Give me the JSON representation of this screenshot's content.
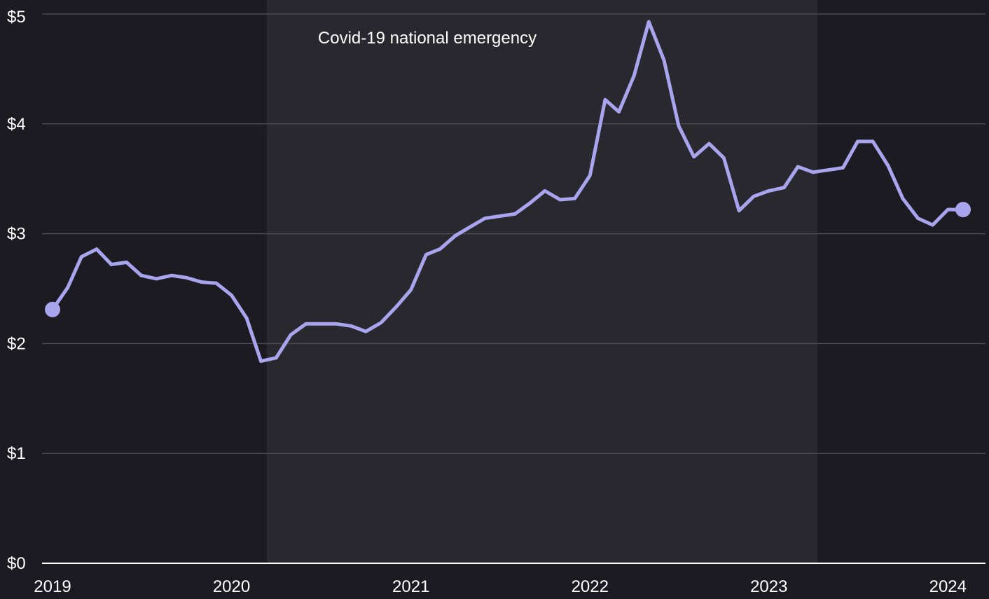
{
  "colors": {
    "background": "#1c1b21",
    "shade": "#29282e",
    "line": "#a9a4ee",
    "gridline": "#4a4950",
    "axis": "#ffffff",
    "text": "#ffffff"
  },
  "chart_data": {
    "type": "line",
    "title": "",
    "xlabel": "",
    "ylabel": "",
    "xlim": [
      "2019-01-01",
      "2024-03-01"
    ],
    "ylim": [
      0,
      5
    ],
    "grid": "horizontal",
    "legend": "none",
    "y_ticks": [
      {
        "value": 0,
        "label": "$0"
      },
      {
        "value": 1,
        "label": "$1"
      },
      {
        "value": 2,
        "label": "$2"
      },
      {
        "value": 3,
        "label": "$3"
      },
      {
        "value": 4,
        "label": "$4"
      },
      {
        "value": 5,
        "label": "$5"
      }
    ],
    "x_ticks": [
      {
        "value": "2019-01-01",
        "label": "2019"
      },
      {
        "value": "2020-01-01",
        "label": "2020"
      },
      {
        "value": "2021-01-01",
        "label": "2021"
      },
      {
        "value": "2022-01-01",
        "label": "2022"
      },
      {
        "value": "2023-01-01",
        "label": "2023"
      },
      {
        "value": "2024-01-01",
        "label": "2024"
      }
    ],
    "annotations": [
      {
        "label": "Covid-19 national emergency",
        "start": "2020-03-13",
        "end": "2023-04-10"
      }
    ],
    "series": [
      {
        "x": [
          "2019-01",
          "2019-02",
          "2019-03",
          "2019-04",
          "2019-05",
          "2019-06",
          "2019-07",
          "2019-08",
          "2019-09",
          "2019-10",
          "2019-11",
          "2019-12",
          "2020-01",
          "2020-02",
          "2020-03",
          "2020-04",
          "2020-05",
          "2020-06",
          "2020-07",
          "2020-08",
          "2020-09",
          "2020-10",
          "2020-11",
          "2020-12",
          "2021-01",
          "2021-02",
          "2021-03",
          "2021-04",
          "2021-05",
          "2021-06",
          "2021-07",
          "2021-08",
          "2021-09",
          "2021-10",
          "2021-11",
          "2021-12",
          "2022-01",
          "2022-02",
          "2022-03",
          "2022-04",
          "2022-05",
          "2022-06",
          "2022-07",
          "2022-08",
          "2022-09",
          "2022-10",
          "2022-11",
          "2022-12",
          "2023-01",
          "2023-02",
          "2023-03",
          "2023-04",
          "2023-05",
          "2023-06",
          "2023-07",
          "2023-08",
          "2023-09",
          "2023-10",
          "2023-11",
          "2023-12",
          "2024-01",
          "2024-02"
        ],
        "values": [
          2.31,
          2.51,
          2.79,
          2.86,
          2.72,
          2.74,
          2.62,
          2.59,
          2.62,
          2.6,
          2.56,
          2.55,
          2.44,
          2.23,
          1.84,
          1.87,
          2.08,
          2.18,
          2.18,
          2.18,
          2.16,
          2.11,
          2.19,
          2.33,
          2.49,
          2.81,
          2.86,
          2.98,
          3.06,
          3.14,
          3.16,
          3.18,
          3.28,
          3.39,
          3.31,
          3.32,
          3.53,
          4.22,
          4.11,
          4.44,
          4.93,
          4.58,
          3.98,
          3.7,
          3.82,
          3.69,
          3.21,
          3.34,
          3.39,
          3.42,
          3.61,
          3.56,
          3.58,
          3.6,
          3.84,
          3.84,
          3.62,
          3.32,
          3.14,
          3.08,
          3.22,
          3.22
        ],
        "endpoint_markers": true
      }
    ]
  }
}
